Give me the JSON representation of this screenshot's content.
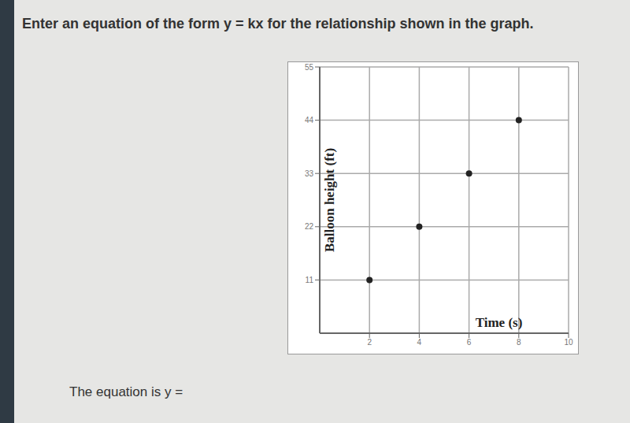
{
  "question": "Enter an equation of the form y = kx for the relationship shown in the graph.",
  "prompt": "The equation is y =",
  "chart_data": {
    "type": "scatter",
    "x": [
      2,
      4,
      6,
      8
    ],
    "values": [
      11,
      22,
      33,
      44
    ],
    "xlabel": "Time (s)",
    "ylabel": "Balloon height (ft)",
    "xlim": [
      0,
      10
    ],
    "ylim": [
      0,
      55
    ],
    "xticks": [
      2,
      4,
      6,
      8,
      10
    ],
    "yticks": [
      11,
      22,
      33,
      44,
      55
    ],
    "grid": true,
    "color": "#222222",
    "marker": "circle"
  }
}
